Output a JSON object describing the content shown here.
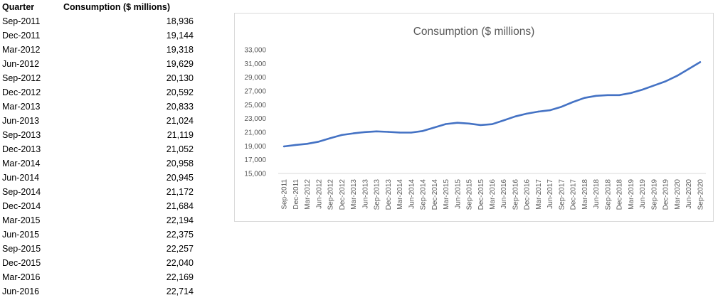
{
  "table": {
    "headers": [
      "Quarter",
      "Consumption  ($ millions)"
    ],
    "rows": [
      [
        "Sep-2011",
        "18,936"
      ],
      [
        "Dec-2011",
        "19,144"
      ],
      [
        "Mar-2012",
        "19,318"
      ],
      [
        "Jun-2012",
        "19,629"
      ],
      [
        "Sep-2012",
        "20,130"
      ],
      [
        "Dec-2012",
        "20,592"
      ],
      [
        "Mar-2013",
        "20,833"
      ],
      [
        "Jun-2013",
        "21,024"
      ],
      [
        "Sep-2013",
        "21,119"
      ],
      [
        "Dec-2013",
        "21,052"
      ],
      [
        "Mar-2014",
        "20,958"
      ],
      [
        "Jun-2014",
        "20,945"
      ],
      [
        "Sep-2014",
        "21,172"
      ],
      [
        "Dec-2014",
        "21,684"
      ],
      [
        "Mar-2015",
        "22,194"
      ],
      [
        "Jun-2015",
        "22,375"
      ],
      [
        "Sep-2015",
        "22,257"
      ],
      [
        "Dec-2015",
        "22,040"
      ],
      [
        "Mar-2016",
        "22,169"
      ],
      [
        "Jun-2016",
        "22,714"
      ]
    ]
  },
  "chart_data": {
    "type": "line",
    "title": "Consumption  ($ millions)",
    "xlabel": "",
    "ylabel": "",
    "ylim": [
      15000,
      33000
    ],
    "yticks": [
      "15,000",
      "17,000",
      "19,000",
      "21,000",
      "23,000",
      "25,000",
      "27,000",
      "29,000",
      "31,000",
      "33,000"
    ],
    "ytick_values": [
      15000,
      17000,
      19000,
      21000,
      23000,
      25000,
      27000,
      29000,
      31000,
      33000
    ],
    "grid": false,
    "line_color": "#4472c4",
    "categories": [
      "Sep-2011",
      "Dec-2011",
      "Mar-2012",
      "Jun-2012",
      "Sep-2012",
      "Dec-2012",
      "Mar-2013",
      "Jun-2013",
      "Sep-2013",
      "Dec-2013",
      "Mar-2014",
      "Jun-2014",
      "Sep-2014",
      "Dec-2014",
      "Mar-2015",
      "Jun-2015",
      "Sep-2015",
      "Dec-2015",
      "Mar-2016",
      "Jun-2016",
      "Sep-2016",
      "Dec-2016",
      "Mar-2017",
      "Jun-2017",
      "Sep-2017",
      "Dec-2017",
      "Mar-2018",
      "Jun-2018",
      "Sep-2018",
      "Dec-2018",
      "Mar-2019",
      "Jun-2019",
      "Sep-2019",
      "Dec-2019",
      "Mar-2020",
      "Jun-2020",
      "Sep-2020"
    ],
    "series": [
      {
        "name": "Consumption  ($ millions)",
        "values": [
          18936,
          19144,
          19318,
          19629,
          20130,
          20592,
          20833,
          21024,
          21119,
          21052,
          20958,
          20945,
          21172,
          21684,
          22194,
          22375,
          22257,
          22040,
          22169,
          22714,
          23300,
          23700,
          24000,
          24200,
          24700,
          25400,
          26000,
          26300,
          26400,
          26400,
          26700,
          27200,
          27800,
          28400,
          29200,
          30200,
          31200
        ]
      }
    ]
  }
}
